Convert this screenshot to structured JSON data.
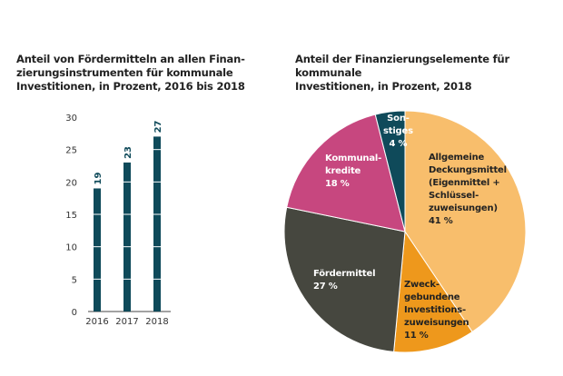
{
  "chart_data": [
    {
      "type": "bar",
      "title": "Anteil von Fördermitteln an allen Finan-\nzierungsinstrumenten für kommunale\nInvestitionen, in Prozent, 2016 bis 2018",
      "categories": [
        "2016",
        "2017",
        "2018"
      ],
      "values": [
        19,
        23,
        27
      ],
      "data_labels": [
        "19",
        "23",
        "27"
      ],
      "ylim": [
        0,
        30
      ],
      "yticks": [
        "0",
        "5",
        "10",
        "15",
        "20",
        "25",
        "30"
      ],
      "xlabel": "",
      "ylabel": "",
      "grid": false,
      "color": "#0f4a5a"
    },
    {
      "type": "pie",
      "title": "Anteil der Finanzierungselemente für kommunale\nInvestitionen, in Prozent, 2018",
      "slices": [
        {
          "label": "Allgemeine\nDeckungsmittel\n(Eigenmittel +\nSchlüssel-\nzuweisungen)\n41 %",
          "value": 41,
          "color": "#f8be6c"
        },
        {
          "label": "Zweck-\ngebundene\nInvestitions-\nzuweisungen\n11 %",
          "value": 11,
          "color": "#ee981c"
        },
        {
          "label": "Fördermittel\n27 %",
          "value": 27,
          "color": "#46473f"
        },
        {
          "label": "Kommunal-\nkredite\n18 %",
          "value": 18,
          "color": "#c7477f"
        },
        {
          "label": "Son-\nstiges\n4 %",
          "value": 4,
          "color": "#0f4a5a"
        }
      ]
    }
  ]
}
